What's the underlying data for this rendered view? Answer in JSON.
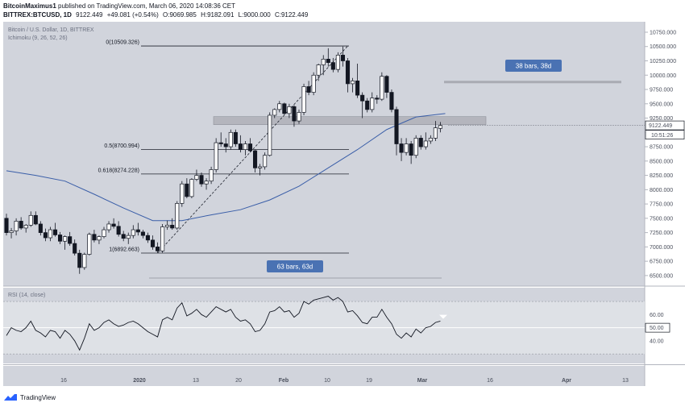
{
  "header": {
    "author": "BitcoinMaximus1",
    "published_text": "published on TradingView.com, March 06, 2020 14:08:36 CET",
    "symbol": "BITTREX:BTCUSD, 1D",
    "last": "9122.449",
    "change": "+49.081 (+0.54%)",
    "open": "O:9069.985",
    "high": "H:9182.091",
    "low": "L:9000.000",
    "close": "C:9122.449"
  },
  "chart_data": {
    "type": "candlestick",
    "title": "Bitcoin / U.S. Dollar, 1D, BITTREX",
    "indicator": "Ichimoku (9, 26, 52, 26)",
    "y_ticks": [
      "10750.000",
      "10500.000",
      "10250.000",
      "10000.000",
      "9750.000",
      "9500.000",
      "9250.000",
      "9000.000",
      "8750.000",
      "8500.000",
      "8250.000",
      "8000.000",
      "7750.000",
      "7500.000",
      "7250.000",
      "7000.000",
      "6750.000",
      "6500.000"
    ],
    "ylim": [
      6400,
      10820
    ],
    "price_label": "9122.449",
    "countdown": "10:51:26",
    "x_ticks": [
      "16",
      "2020",
      "13",
      "20",
      "Feb",
      "10",
      "19",
      "Mar",
      "16",
      "Apr",
      "13"
    ],
    "fib_levels": [
      {
        "label": "0(10509.326)",
        "value": 10509.326
      },
      {
        "label": "0.5(8700.994)",
        "value": 8700.994
      },
      {
        "label": "0.618(8274.228)",
        "value": 8274.228
      },
      {
        "label": "1(6892.663)",
        "value": 6892.663
      }
    ],
    "resistance_zone": [
      9150,
      9220
    ],
    "target_line": 9880,
    "bars_labels": [
      "38 bars, 38d",
      "63 bars, 63d"
    ],
    "candles": [
      [
        7500,
        7580,
        7200,
        7250
      ],
      [
        7250,
        7330,
        7150,
        7280
      ],
      [
        7280,
        7500,
        7200,
        7450
      ],
      [
        7450,
        7520,
        7300,
        7330
      ],
      [
        7330,
        7400,
        7250,
        7380
      ],
      [
        7380,
        7620,
        7350,
        7550
      ],
      [
        7550,
        7620,
        7380,
        7400
      ],
      [
        7400,
        7450,
        7200,
        7250
      ],
      [
        7250,
        7320,
        7100,
        7160
      ],
      [
        7160,
        7350,
        7100,
        7300
      ],
      [
        7300,
        7420,
        7180,
        7210
      ],
      [
        7210,
        7260,
        7050,
        7100
      ],
      [
        7100,
        7200,
        6950,
        7180
      ],
      [
        7180,
        7260,
        7020,
        7060
      ],
      [
        7060,
        7130,
        6850,
        6890
      ],
      [
        6890,
        6950,
        6530,
        6640
      ],
      [
        6640,
        6900,
        6600,
        6870
      ],
      [
        6870,
        7250,
        6850,
        7220
      ],
      [
        7220,
        7300,
        7080,
        7120
      ],
      [
        7120,
        7200,
        7050,
        7180
      ],
      [
        7180,
        7350,
        7150,
        7300
      ],
      [
        7300,
        7450,
        7250,
        7400
      ],
      [
        7400,
        7500,
        7320,
        7360
      ],
      [
        7360,
        7450,
        7180,
        7220
      ],
      [
        7220,
        7280,
        7100,
        7150
      ],
      [
        7150,
        7250,
        7050,
        7200
      ],
      [
        7200,
        7380,
        7150,
        7300
      ],
      [
        7300,
        7420,
        7200,
        7260
      ],
      [
        7260,
        7300,
        7150,
        7200
      ],
      [
        7200,
        7250,
        7070,
        7120
      ],
      [
        7120,
        7200,
        6950,
        7000
      ],
      [
        7000,
        7080,
        6900,
        6930
      ],
      [
        6930,
        7400,
        6900,
        7350
      ],
      [
        7350,
        7460,
        7300,
        7380
      ],
      [
        7380,
        7500,
        7300,
        7330
      ],
      [
        7330,
        7800,
        7300,
        7760
      ],
      [
        7760,
        8150,
        7700,
        8100
      ],
      [
        8100,
        8200,
        7850,
        7880
      ],
      [
        7880,
        8200,
        7850,
        8180
      ],
      [
        8180,
        8350,
        8150,
        8250
      ],
      [
        8250,
        8300,
        8050,
        8100
      ],
      [
        8100,
        8200,
        8000,
        8150
      ],
      [
        8150,
        8400,
        8100,
        8350
      ],
      [
        8350,
        8900,
        8300,
        8820
      ],
      [
        8820,
        9000,
        8750,
        8800
      ],
      [
        8800,
        8900,
        8650,
        8750
      ],
      [
        8750,
        9050,
        8700,
        9000
      ],
      [
        9000,
        9050,
        8750,
        8800
      ],
      [
        8800,
        8950,
        8650,
        8700
      ],
      [
        8700,
        8850,
        8600,
        8800
      ],
      [
        8800,
        8900,
        8650,
        8680
      ],
      [
        8680,
        8700,
        8300,
        8380
      ],
      [
        8380,
        8450,
        8250,
        8400
      ],
      [
        8400,
        8650,
        8350,
        8600
      ],
      [
        8600,
        9350,
        8580,
        9300
      ],
      [
        9300,
        9420,
        9250,
        9400
      ],
      [
        9400,
        9550,
        9350,
        9500
      ],
      [
        9500,
        9520,
        9300,
        9330
      ],
      [
        9330,
        9500,
        9250,
        9450
      ],
      [
        9450,
        9480,
        9100,
        9200
      ],
      [
        9200,
        9400,
        9150,
        9350
      ],
      [
        9350,
        9850,
        9300,
        9800
      ],
      [
        9800,
        9900,
        9650,
        9700
      ],
      [
        9700,
        10050,
        9650,
        10000
      ],
      [
        10000,
        10200,
        9900,
        10180
      ],
      [
        10180,
        10350,
        10000,
        10280
      ],
      [
        10280,
        10470,
        10150,
        10220
      ],
      [
        10220,
        10300,
        10050,
        10100
      ],
      [
        10100,
        10400,
        10050,
        10350
      ],
      [
        10350,
        10500,
        10150,
        10250
      ],
      [
        10250,
        10300,
        9700,
        9850
      ],
      [
        9850,
        9950,
        9700,
        9900
      ],
      [
        9900,
        10200,
        9600,
        9650
      ],
      [
        9650,
        9700,
        9250,
        9550
      ],
      [
        9550,
        9600,
        9350,
        9400
      ],
      [
        9400,
        9700,
        9350,
        9600
      ],
      [
        9600,
        9650,
        9500,
        9580
      ],
      [
        9580,
        10050,
        9550,
        9980
      ],
      [
        9980,
        10000,
        9600,
        9700
      ],
      [
        9700,
        9750,
        9350,
        9400
      ],
      [
        9400,
        9450,
        8600,
        8800
      ],
      [
        8800,
        8900,
        8500,
        8650
      ],
      [
        8650,
        8900,
        8600,
        8800
      ],
      [
        8800,
        8850,
        8450,
        8600
      ],
      [
        8600,
        8950,
        8550,
        8900
      ],
      [
        8900,
        8950,
        8700,
        8750
      ],
      [
        8750,
        9000,
        8700,
        8850
      ],
      [
        8850,
        8950,
        8800,
        8900
      ],
      [
        8900,
        9200,
        8850,
        9080
      ],
      [
        9070,
        9182,
        9000,
        9122
      ]
    ],
    "ma_points": [
      [
        0,
        8330
      ],
      [
        6,
        8250
      ],
      [
        12,
        8150
      ],
      [
        18,
        7920
      ],
      [
        24,
        7680
      ],
      [
        30,
        7460
      ],
      [
        36,
        7460
      ],
      [
        42,
        7560
      ],
      [
        48,
        7650
      ],
      [
        54,
        7820
      ],
      [
        60,
        8060
      ],
      [
        66,
        8380
      ],
      [
        72,
        8700
      ],
      [
        78,
        9050
      ],
      [
        84,
        9270
      ],
      [
        90,
        9330
      ]
    ],
    "rsi": {
      "label": "RSI (14, close)",
      "y_ticks": [
        "60.00",
        "50.00",
        "40.00"
      ],
      "current_label": "50.00",
      "upper": 70,
      "lower": 30,
      "ylim": [
        24,
        78
      ],
      "values": [
        44,
        50,
        48,
        47,
        50,
        55,
        48,
        46,
        43,
        48,
        47,
        42,
        48,
        45,
        40,
        33,
        42,
        53,
        48,
        50,
        54,
        56,
        53,
        51,
        52,
        54,
        55,
        53,
        50,
        47,
        45,
        43,
        56,
        58,
        56,
        65,
        69,
        59,
        61,
        64,
        60,
        58,
        62,
        66,
        64,
        62,
        64,
        58,
        55,
        56,
        53,
        47,
        48,
        53,
        62,
        63,
        66,
        62,
        63,
        58,
        61,
        70,
        68,
        71,
        72,
        73,
        74,
        71,
        73,
        70,
        62,
        63,
        59,
        54,
        53,
        58,
        58,
        64,
        58,
        53,
        45,
        42,
        46,
        43,
        49,
        46,
        50,
        51,
        54,
        55
      ]
    }
  },
  "footer": {
    "brand": "TradingView"
  }
}
